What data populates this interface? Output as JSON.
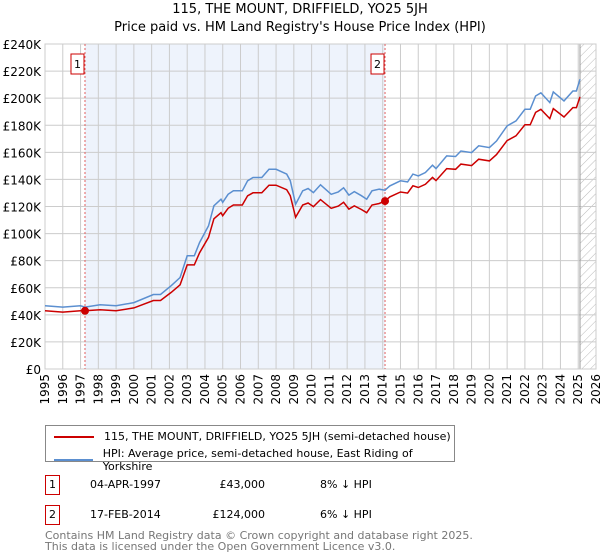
{
  "chart_data": {
    "type": "line",
    "title": "115, THE MOUNT, DRIFFIELD, YO25 5JH",
    "subtitle": "Price paid vs. HM Land Registry's House Price Index (HPI)",
    "unit": "GBP thousands",
    "xlim": [
      1995,
      2026
    ],
    "ylim": [
      0,
      240
    ],
    "y_ticks": [
      0,
      20,
      40,
      60,
      80,
      100,
      120,
      140,
      160,
      180,
      200,
      220,
      240
    ],
    "y_tick_labels": [
      "£0",
      "£20K",
      "£40K",
      "£60K",
      "£80K",
      "£100K",
      "£120K",
      "£140K",
      "£160K",
      "£180K",
      "£200K",
      "£220K",
      "£240K"
    ],
    "x_ticks": [
      1995,
      1996,
      1997,
      1998,
      1999,
      2000,
      2001,
      2002,
      2003,
      2004,
      2005,
      2006,
      2007,
      2008,
      2009,
      2010,
      2011,
      2012,
      2013,
      2014,
      2015,
      2016,
      2017,
      2018,
      2019,
      2020,
      2021,
      2022,
      2023,
      2024,
      2025,
      2026
    ],
    "grid": true,
    "shaded_range": [
      1997.25,
      2014.13
    ],
    "hatched_from": 2025.1,
    "series": [
      {
        "name": "115, THE MOUNT, DRIFFIELD, YO25 5JH (semi-detached house)",
        "color": "#cc0000",
        "x": [
          1995,
          1996,
          1997,
          1997.25,
          1998.1,
          1999,
          2000,
          2001.1,
          2001.5,
          2002.1,
          2002.6,
          2003,
          2003.4,
          2003.7,
          2004.2,
          2004.5,
          2004.9,
          2005,
          2005.3,
          2005.6,
          2006.1,
          2006.4,
          2006.7,
          2007.2,
          2007.6,
          2008,
          2008.6,
          2008.8,
          2009.1,
          2009.5,
          2009.8,
          2010.1,
          2010.5,
          2011.1,
          2011.5,
          2011.8,
          2012.1,
          2012.4,
          2012.8,
          2013.1,
          2013.4,
          2013.8,
          2014.13,
          2014.4,
          2015,
          2015.4,
          2015.7,
          2016,
          2016.4,
          2016.8,
          2017,
          2017.6,
          2018.1,
          2018.4,
          2019,
          2019.4,
          2020,
          2020.4,
          2021,
          2021.5,
          2022,
          2022.3,
          2022.6,
          2022.9,
          2023.4,
          2023.6,
          2024.2,
          2024.7,
          2024.9,
          2025.1
        ],
        "values": [
          43,
          42,
          43,
          43,
          43.7,
          43,
          45.1,
          50.6,
          50.6,
          56.6,
          62.2,
          76.9,
          76.9,
          85.9,
          97.2,
          110.9,
          115.4,
          113.2,
          118.7,
          121.1,
          121.1,
          127.9,
          130.1,
          130.1,
          135.7,
          135.7,
          132.4,
          127.9,
          112,
          121.1,
          122.6,
          119.9,
          125.1,
          118.7,
          120.3,
          123.1,
          118.1,
          120.5,
          117.8,
          115.4,
          121.1,
          122.2,
          124,
          127.1,
          130.7,
          129.9,
          135.3,
          134,
          136.4,
          141.5,
          139.1,
          148,
          147.5,
          151.3,
          150.2,
          154.9,
          153.7,
          158.3,
          168.7,
          172.2,
          180.3,
          180.3,
          189.5,
          191.8,
          184.9,
          192.3,
          186.1,
          193,
          193,
          201
        ]
      },
      {
        "name": "HPI: Average price, semi-detached house, East Riding of Yorkshire",
        "color": "#5b8fd0",
        "x": [
          1995,
          1996,
          1997,
          1997.25,
          1998.1,
          1999,
          2000,
          2001.1,
          2001.5,
          2002.1,
          2002.6,
          2003,
          2003.4,
          2003.7,
          2004.2,
          2004.5,
          2004.9,
          2005,
          2005.3,
          2005.6,
          2006.1,
          2006.4,
          2006.7,
          2007.2,
          2007.6,
          2008,
          2008.6,
          2008.8,
          2009.1,
          2009.5,
          2009.8,
          2010.1,
          2010.5,
          2011.1,
          2011.5,
          2011.8,
          2012.1,
          2012.4,
          2012.8,
          2013.1,
          2013.4,
          2013.8,
          2014.13,
          2014.4,
          2015,
          2015.4,
          2015.7,
          2016,
          2016.4,
          2016.8,
          2017,
          2017.6,
          2018.1,
          2018.4,
          2019,
          2019.4,
          2020,
          2020.4,
          2021,
          2021.5,
          2022,
          2022.3,
          2022.6,
          2022.9,
          2023.4,
          2023.6,
          2024.2,
          2024.7,
          2024.9,
          2025.1
        ],
        "values": [
          46.7,
          45.7,
          46.7,
          45.7,
          47.5,
          46.7,
          49,
          55,
          55,
          61.5,
          67.6,
          83.6,
          83.6,
          93.4,
          105.7,
          120.5,
          125.4,
          123,
          129,
          131.6,
          131.6,
          139,
          141.4,
          141.4,
          147.5,
          147.5,
          143.9,
          139,
          121.7,
          131.6,
          133.3,
          130.3,
          136,
          129,
          130.8,
          133.8,
          128.4,
          131,
          128,
          125.4,
          131.6,
          132.8,
          132,
          135.2,
          139,
          138.2,
          143.9,
          142.6,
          145.1,
          150.5,
          148,
          157.4,
          156.9,
          161,
          159.8,
          164.8,
          163.5,
          168.4,
          179.5,
          183.2,
          191.8,
          191.8,
          201.6,
          204,
          196.7,
          204.6,
          198,
          205.3,
          205.3,
          214
        ]
      }
    ],
    "sales": [
      {
        "label": "1",
        "x": 1997.25,
        "value": 43
      },
      {
        "label": "2",
        "x": 2014.13,
        "value": 124
      }
    ]
  },
  "legend": {
    "property": "115, THE MOUNT, DRIFFIELD, YO25 5JH (semi-detached house)",
    "hpi": "HPI: Average price, semi-detached house, East Riding of Yorkshire"
  },
  "transactions": [
    {
      "num": "1",
      "date": "04-APR-1997",
      "price": "£43,000",
      "hpi": "8% ↓ HPI"
    },
    {
      "num": "2",
      "date": "17-FEB-2014",
      "price": "£124,000",
      "hpi": "6% ↓ HPI"
    }
  ],
  "footer": {
    "line1": "Contains HM Land Registry data © Crown copyright and database right 2025.",
    "line2": "This data is licensed under the Open Government Licence v3.0."
  }
}
